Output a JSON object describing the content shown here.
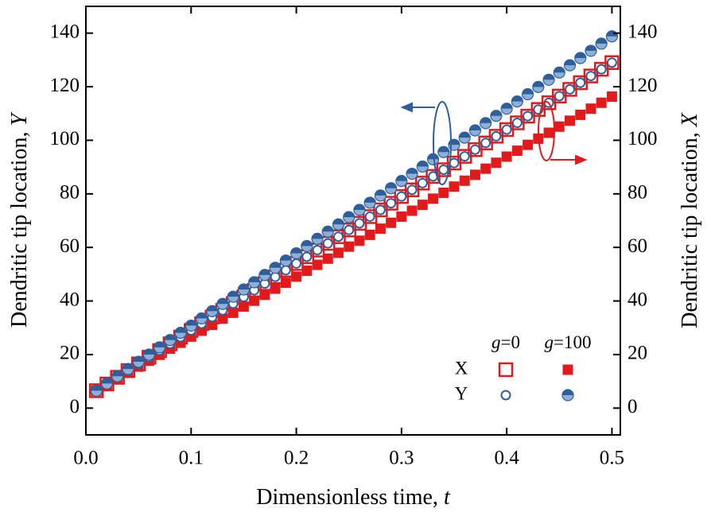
{
  "chart_data": {
    "type": "scatter",
    "xlabel": [
      "Dimensionless time,",
      "t"
    ],
    "ylabel": [
      "Dendritic tip location,",
      "Y"
    ],
    "y2label": [
      "Dendritic tip location,",
      "X"
    ],
    "xlim": [
      0,
      0.508
    ],
    "xticks": [
      0.0,
      0.1,
      0.2,
      0.3,
      0.4,
      0.5
    ],
    "ylim": [
      -10,
      150
    ],
    "yticks": [
      0,
      20,
      40,
      60,
      80,
      100,
      120,
      140
    ],
    "y2lim": [
      -10,
      150
    ],
    "y2ticks": [
      0,
      20,
      40,
      60,
      80,
      100,
      120,
      140
    ],
    "legend": {
      "columns": [
        "g=0",
        "g=100"
      ],
      "rows": [
        "X",
        "Y"
      ]
    },
    "x": [
      0.01,
      0.02,
      0.03,
      0.04,
      0.05,
      0.06,
      0.07,
      0.08,
      0.09,
      0.1,
      0.11,
      0.12,
      0.13,
      0.14,
      0.15,
      0.16,
      0.17,
      0.18,
      0.19,
      0.2,
      0.21,
      0.22,
      0.23,
      0.24,
      0.25,
      0.26,
      0.27,
      0.28,
      0.29,
      0.3,
      0.31,
      0.32,
      0.33,
      0.34,
      0.35,
      0.36,
      0.37,
      0.38,
      0.39,
      0.4,
      0.41,
      0.42,
      0.43,
      0.44,
      0.45,
      0.46,
      0.47,
      0.48,
      0.49,
      0.5
    ],
    "series": [
      {
        "color": "#e31a1c",
        "marker": "open-square",
        "axis": "y2",
        "values": [
          6.5,
          9,
          11.5,
          14,
          16.5,
          19,
          21.5,
          24,
          26.5,
          29,
          31.5,
          34,
          36.5,
          39,
          41.5,
          44,
          46.5,
          49,
          51.5,
          54,
          56.5,
          59,
          61.5,
          64,
          66.5,
          69,
          71.5,
          74,
          76.5,
          79,
          81.5,
          84,
          86.5,
          89,
          91.5,
          94,
          96.5,
          99,
          101.5,
          104,
          106.5,
          109,
          111.5,
          114,
          116.5,
          119,
          121.5,
          124,
          126.5,
          129
        ]
      },
      {
        "color": "#e31a1c",
        "marker": "filled-square",
        "axis": "y2",
        "values": [
          6.5,
          8.7,
          11.0,
          13.2,
          15.5,
          17.7,
          19.9,
          22.2,
          24.4,
          26.7,
          28.9,
          31.1,
          33.4,
          35.6,
          37.9,
          40.1,
          42.3,
          44.6,
          46.8,
          49.1,
          51.3,
          53.5,
          55.8,
          58.0,
          60.3,
          62.5,
          64.7,
          67.0,
          69.2,
          71.5,
          73.7,
          75.9,
          78.2,
          80.4,
          82.7,
          84.9,
          87.1,
          89.4,
          91.6,
          93.9,
          96.1,
          98.3,
          100.6,
          102.8,
          105.1,
          107.3,
          109.5,
          111.8,
          114.0,
          116.3
        ]
      },
      {
        "color": "#2e5f9c",
        "marker": "open-circle",
        "values": [
          6.5,
          9,
          11.5,
          14,
          16.5,
          19,
          21.5,
          24,
          26.5,
          29,
          31.5,
          34,
          36.5,
          39,
          41.5,
          44,
          46.5,
          49,
          51.5,
          54,
          56.5,
          59,
          61.5,
          64,
          66.5,
          69,
          71.5,
          74,
          76.5,
          79,
          81.5,
          84,
          86.5,
          89,
          91.5,
          94,
          96.5,
          99,
          101.5,
          104,
          106.5,
          109,
          111.5,
          114,
          116.5,
          119,
          121.5,
          124,
          126.5,
          129
        ]
      },
      {
        "color": "#2e5f9c",
        "marker": "half-circle",
        "values": [
          6.5,
          9.2,
          11.9,
          14.6,
          17.3,
          20,
          22.7,
          25.4,
          28.1,
          30.8,
          33.5,
          36.2,
          38.9,
          41.6,
          44.3,
          47,
          49.7,
          52.4,
          55.1,
          57.8,
          60.5,
          63.2,
          65.9,
          68.6,
          71.3,
          74,
          76.7,
          79.4,
          82.1,
          84.8,
          87.5,
          90.2,
          92.9,
          95.6,
          98.3,
          101,
          103.7,
          106.4,
          109.1,
          111.8,
          114.5,
          117.2,
          119.9,
          122.6,
          125.3,
          128,
          130.7,
          133.4,
          136.1,
          138.8
        ]
      }
    ]
  }
}
